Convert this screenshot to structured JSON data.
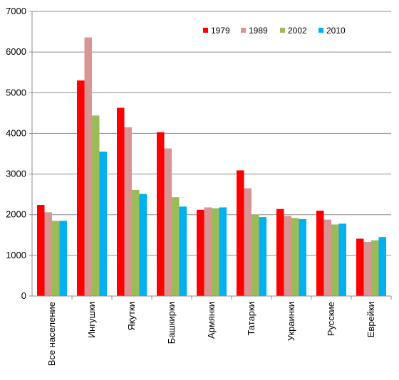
{
  "chart_data": {
    "type": "bar",
    "title": "",
    "xlabel": "",
    "ylabel": "",
    "ylim": [
      0,
      7000
    ],
    "yticks": [
      0,
      1000,
      2000,
      3000,
      4000,
      5000,
      6000,
      7000
    ],
    "grid": true,
    "legend_position": "top-right",
    "categories": [
      "Все население",
      "Ингушки",
      "Якутки",
      "Башкирки",
      "Армянки",
      "Татарки",
      "Украинки",
      "Русские",
      "Еврейки"
    ],
    "series": [
      {
        "name": "1979",
        "color": "#ff0000",
        "values": [
          2240,
          5300,
          4630,
          4030,
          2120,
          3090,
          2140,
          2100,
          1410
        ]
      },
      {
        "name": "1989",
        "color": "#d99594",
        "values": [
          2060,
          6360,
          4150,
          3630,
          2180,
          2650,
          1970,
          1880,
          1330
        ]
      },
      {
        "name": "2002",
        "color": "#9bbb59",
        "values": [
          1850,
          4440,
          2610,
          2430,
          2160,
          2000,
          1920,
          1760,
          1370
        ]
      },
      {
        "name": "2010",
        "color": "#00b0f0",
        "values": [
          1850,
          3550,
          2510,
          2200,
          2180,
          1940,
          1890,
          1780,
          1450
        ]
      }
    ]
  }
}
